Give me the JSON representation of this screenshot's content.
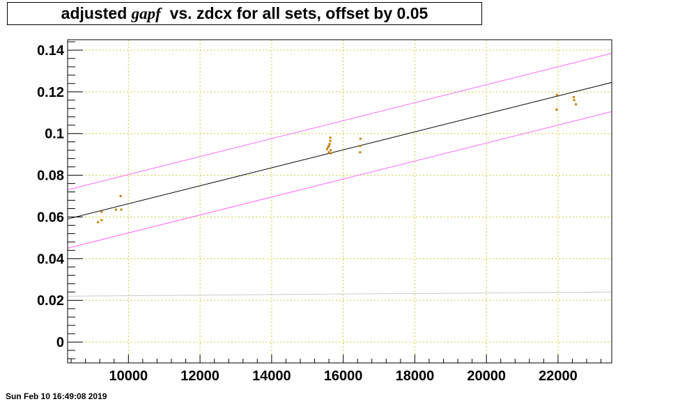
{
  "title": {
    "prefix": "adjusted ",
    "italic": "gapf",
    "suffix": "  vs. zdcx for all sets, offset by 0.05"
  },
  "timestamp": "Sun Feb 10 16:49:08 2019",
  "colors": {
    "points": "#c87d00",
    "fit": "#000000",
    "band": "#ff66ff",
    "baseline": "#c8c8c8",
    "grid": "#cccc33"
  },
  "chart_data": {
    "type": "scatter",
    "title": "adjusted gapf vs. zdcx for all sets, offset by 0.05",
    "xlabel": "",
    "ylabel": "",
    "xlim": [
      8300,
      23500
    ],
    "ylim": [
      -0.01,
      0.145
    ],
    "grid": true,
    "xticks": [
      10000,
      12000,
      14000,
      16000,
      18000,
      20000,
      22000
    ],
    "xtick_labels": [
      "10000",
      "12000",
      "14000",
      "16000",
      "18000",
      "20000",
      "22000"
    ],
    "yticks": [
      0,
      0.02,
      0.04,
      0.06,
      0.08,
      0.1,
      0.12,
      0.14
    ],
    "ytick_labels": [
      "0",
      "0.02",
      "0.04",
      "0.06",
      "0.08",
      "0.1",
      "0.12",
      "0.14"
    ],
    "points": [
      {
        "x": 9150,
        "y": 0.0575
      },
      {
        "x": 9250,
        "y": 0.0585
      },
      {
        "x": 9250,
        "y": 0.0625
      },
      {
        "x": 9650,
        "y": 0.0635
      },
      {
        "x": 9800,
        "y": 0.0635
      },
      {
        "x": 9780,
        "y": 0.07
      },
      {
        "x": 15550,
        "y": 0.0925
      },
      {
        "x": 15580,
        "y": 0.0935
      },
      {
        "x": 15600,
        "y": 0.094
      },
      {
        "x": 15600,
        "y": 0.091
      },
      {
        "x": 15620,
        "y": 0.095
      },
      {
        "x": 15640,
        "y": 0.0965
      },
      {
        "x": 15640,
        "y": 0.098
      },
      {
        "x": 15650,
        "y": 0.092
      },
      {
        "x": 15660,
        "y": 0.0905
      },
      {
        "x": 16480,
        "y": 0.0975
      },
      {
        "x": 16470,
        "y": 0.094
      },
      {
        "x": 16470,
        "y": 0.091
      },
      {
        "x": 21970,
        "y": 0.1185
      },
      {
        "x": 21960,
        "y": 0.1115
      },
      {
        "x": 22440,
        "y": 0.1175
      },
      {
        "x": 22450,
        "y": 0.116
      },
      {
        "x": 22500,
        "y": 0.114
      }
    ],
    "lines": [
      {
        "role": "fit",
        "x": [
          8300,
          23500
        ],
        "y": [
          0.059,
          0.1245
        ]
      },
      {
        "role": "upper",
        "x": [
          8300,
          23500
        ],
        "y": [
          0.073,
          0.1385
        ]
      },
      {
        "role": "lower",
        "x": [
          8300,
          23500
        ],
        "y": [
          0.045,
          0.1105
        ]
      },
      {
        "role": "baseline",
        "x": [
          8300,
          23500
        ],
        "y": [
          0.022,
          0.024
        ]
      }
    ]
  }
}
